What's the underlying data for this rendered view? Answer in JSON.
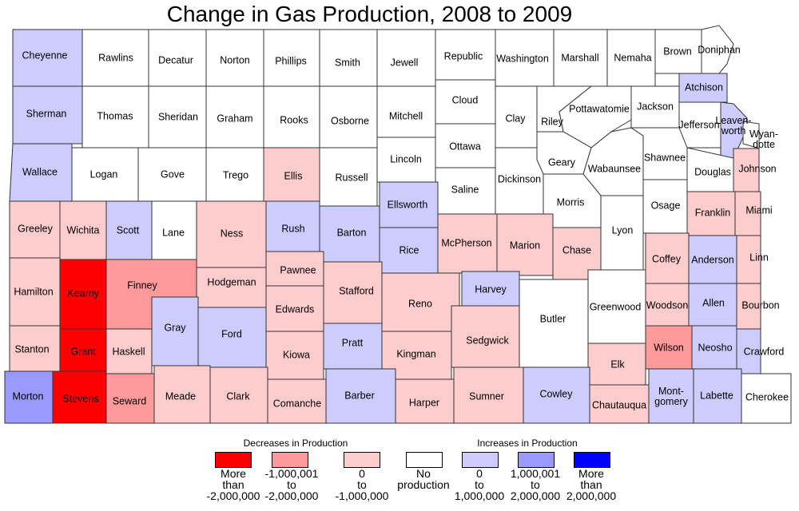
{
  "title": "Change in Gas Production, 2008 to 2009",
  "legend": {
    "decreases_heading": "Decreases in Production",
    "increases_heading": "Increases in Production",
    "classes": [
      {
        "id": "d2",
        "color": "#ff0000",
        "lines": [
          "More",
          "than",
          "-2,000,000"
        ]
      },
      {
        "id": "d1",
        "color": "#fe9a9a",
        "lines": [
          "-1,000,001",
          "to",
          "-2,000,000"
        ]
      },
      {
        "id": "d0",
        "color": "#fdcccc",
        "lines": [
          "0",
          "to",
          "-1,000,000"
        ]
      },
      {
        "id": "n",
        "color": "#ffffff",
        "lines": [
          "No",
          "production"
        ]
      },
      {
        "id": "i0",
        "color": "#ccccfe",
        "lines": [
          "0",
          "to",
          "1,000,000"
        ]
      },
      {
        "id": "i1",
        "color": "#9a9afe",
        "lines": [
          "1,000,001",
          "to",
          "2,000,000"
        ]
      },
      {
        "id": "i2",
        "color": "#0000ff",
        "lines": [
          "More",
          "than",
          "2,000,000"
        ]
      }
    ]
  },
  "counties": [
    {
      "name": "Cheyenne",
      "cls": "i0"
    },
    {
      "name": "Rawlins",
      "cls": "n"
    },
    {
      "name": "Decatur",
      "cls": "n"
    },
    {
      "name": "Norton",
      "cls": "n"
    },
    {
      "name": "Phillips",
      "cls": "n"
    },
    {
      "name": "Smith",
      "cls": "n"
    },
    {
      "name": "Jewell",
      "cls": "n"
    },
    {
      "name": "Republic",
      "cls": "n"
    },
    {
      "name": "Washington",
      "cls": "n"
    },
    {
      "name": "Marshall",
      "cls": "n"
    },
    {
      "name": "Nemaha",
      "cls": "n"
    },
    {
      "name": "Brown",
      "cls": "n"
    },
    {
      "name": "Doniphan",
      "cls": "n"
    },
    {
      "name": "Sherman",
      "cls": "i0"
    },
    {
      "name": "Thomas",
      "cls": "n"
    },
    {
      "name": "Sheridan",
      "cls": "n"
    },
    {
      "name": "Graham",
      "cls": "n"
    },
    {
      "name": "Rooks",
      "cls": "n"
    },
    {
      "name": "Osborne",
      "cls": "n"
    },
    {
      "name": "Mitchell",
      "cls": "n"
    },
    {
      "name": "Cloud",
      "cls": "n"
    },
    {
      "name": "Clay",
      "cls": "n"
    },
    {
      "name": "Riley",
      "cls": "n"
    },
    {
      "name": "Pottawatomie",
      "cls": "n"
    },
    {
      "name": "Jackson",
      "cls": "n"
    },
    {
      "name": "Atchison",
      "cls": "i0"
    },
    {
      "name": "Jefferson",
      "cls": "n"
    },
    {
      "name": "Leaven-worth",
      "cls": "i0"
    },
    {
      "name": "Wyan-dotte",
      "cls": "n"
    },
    {
      "name": "Wallace",
      "cls": "i0"
    },
    {
      "name": "Logan",
      "cls": "n"
    },
    {
      "name": "Gove",
      "cls": "n"
    },
    {
      "name": "Trego",
      "cls": "n"
    },
    {
      "name": "Ellis",
      "cls": "d0"
    },
    {
      "name": "Russell",
      "cls": "n"
    },
    {
      "name": "Lincoln",
      "cls": "n"
    },
    {
      "name": "Ottawa",
      "cls": "n"
    },
    {
      "name": "Saline",
      "cls": "n"
    },
    {
      "name": "Dickinson",
      "cls": "n"
    },
    {
      "name": "Geary",
      "cls": "n"
    },
    {
      "name": "Morris",
      "cls": "n"
    },
    {
      "name": "Wabaunsee",
      "cls": "n"
    },
    {
      "name": "Shawnee",
      "cls": "n"
    },
    {
      "name": "Douglas",
      "cls": "n"
    },
    {
      "name": "Johnson",
      "cls": "d0"
    },
    {
      "name": "Greeley",
      "cls": "d0"
    },
    {
      "name": "Wichita",
      "cls": "d0"
    },
    {
      "name": "Scott",
      "cls": "i0"
    },
    {
      "name": "Lane",
      "cls": "n"
    },
    {
      "name": "Ness",
      "cls": "d0"
    },
    {
      "name": "Rush",
      "cls": "i0"
    },
    {
      "name": "Barton",
      "cls": "i0"
    },
    {
      "name": "Ellsworth",
      "cls": "i0"
    },
    {
      "name": "Rice",
      "cls": "i0"
    },
    {
      "name": "McPherson",
      "cls": "d0"
    },
    {
      "name": "Marion",
      "cls": "d0"
    },
    {
      "name": "Chase",
      "cls": "d0"
    },
    {
      "name": "Lyon",
      "cls": "n"
    },
    {
      "name": "Osage",
      "cls": "n"
    },
    {
      "name": "Franklin",
      "cls": "d0"
    },
    {
      "name": "Miami",
      "cls": "d0"
    },
    {
      "name": "Hamilton",
      "cls": "d0"
    },
    {
      "name": "Kearny",
      "cls": "d2"
    },
    {
      "name": "Finney",
      "cls": "d1"
    },
    {
      "name": "Hodgeman",
      "cls": "d0"
    },
    {
      "name": "Pawnee",
      "cls": "d0"
    },
    {
      "name": "Stafford",
      "cls": "d0"
    },
    {
      "name": "Edwards",
      "cls": "d0"
    },
    {
      "name": "Reno",
      "cls": "d0"
    },
    {
      "name": "Harvey",
      "cls": "i0"
    },
    {
      "name": "Butler",
      "cls": "n"
    },
    {
      "name": "Greenwood",
      "cls": "n"
    },
    {
      "name": "Coffey",
      "cls": "d0"
    },
    {
      "name": "Anderson",
      "cls": "i0"
    },
    {
      "name": "Linn",
      "cls": "d0"
    },
    {
      "name": "Woodson",
      "cls": "d0"
    },
    {
      "name": "Allen",
      "cls": "i0"
    },
    {
      "name": "Bourbon",
      "cls": "d0"
    },
    {
      "name": "Stanton",
      "cls": "d0"
    },
    {
      "name": "Grant",
      "cls": "d2"
    },
    {
      "name": "Haskell",
      "cls": "d0"
    },
    {
      "name": "Gray",
      "cls": "i0"
    },
    {
      "name": "Ford",
      "cls": "i0"
    },
    {
      "name": "Kiowa",
      "cls": "d0"
    },
    {
      "name": "Pratt",
      "cls": "i0"
    },
    {
      "name": "Kingman",
      "cls": "d0"
    },
    {
      "name": "Sedgwick",
      "cls": "d0"
    },
    {
      "name": "Elk",
      "cls": "d0"
    },
    {
      "name": "Wilson",
      "cls": "d1"
    },
    {
      "name": "Neosho",
      "cls": "i0"
    },
    {
      "name": "Crawford",
      "cls": "i0"
    },
    {
      "name": "Morton",
      "cls": "i1"
    },
    {
      "name": "Stevens",
      "cls": "d2"
    },
    {
      "name": "Seward",
      "cls": "d1"
    },
    {
      "name": "Meade",
      "cls": "d0"
    },
    {
      "name": "Clark",
      "cls": "d0"
    },
    {
      "name": "Comanche",
      "cls": "d0"
    },
    {
      "name": "Barber",
      "cls": "i0"
    },
    {
      "name": "Harper",
      "cls": "d0"
    },
    {
      "name": "Sumner",
      "cls": "d0"
    },
    {
      "name": "Cowley",
      "cls": "i0"
    },
    {
      "name": "Chautauqua",
      "cls": "d0"
    },
    {
      "name": "Mont-gomery",
      "cls": "i0"
    },
    {
      "name": "Labette",
      "cls": "i0"
    },
    {
      "name": "Cherokee",
      "cls": "n"
    }
  ]
}
